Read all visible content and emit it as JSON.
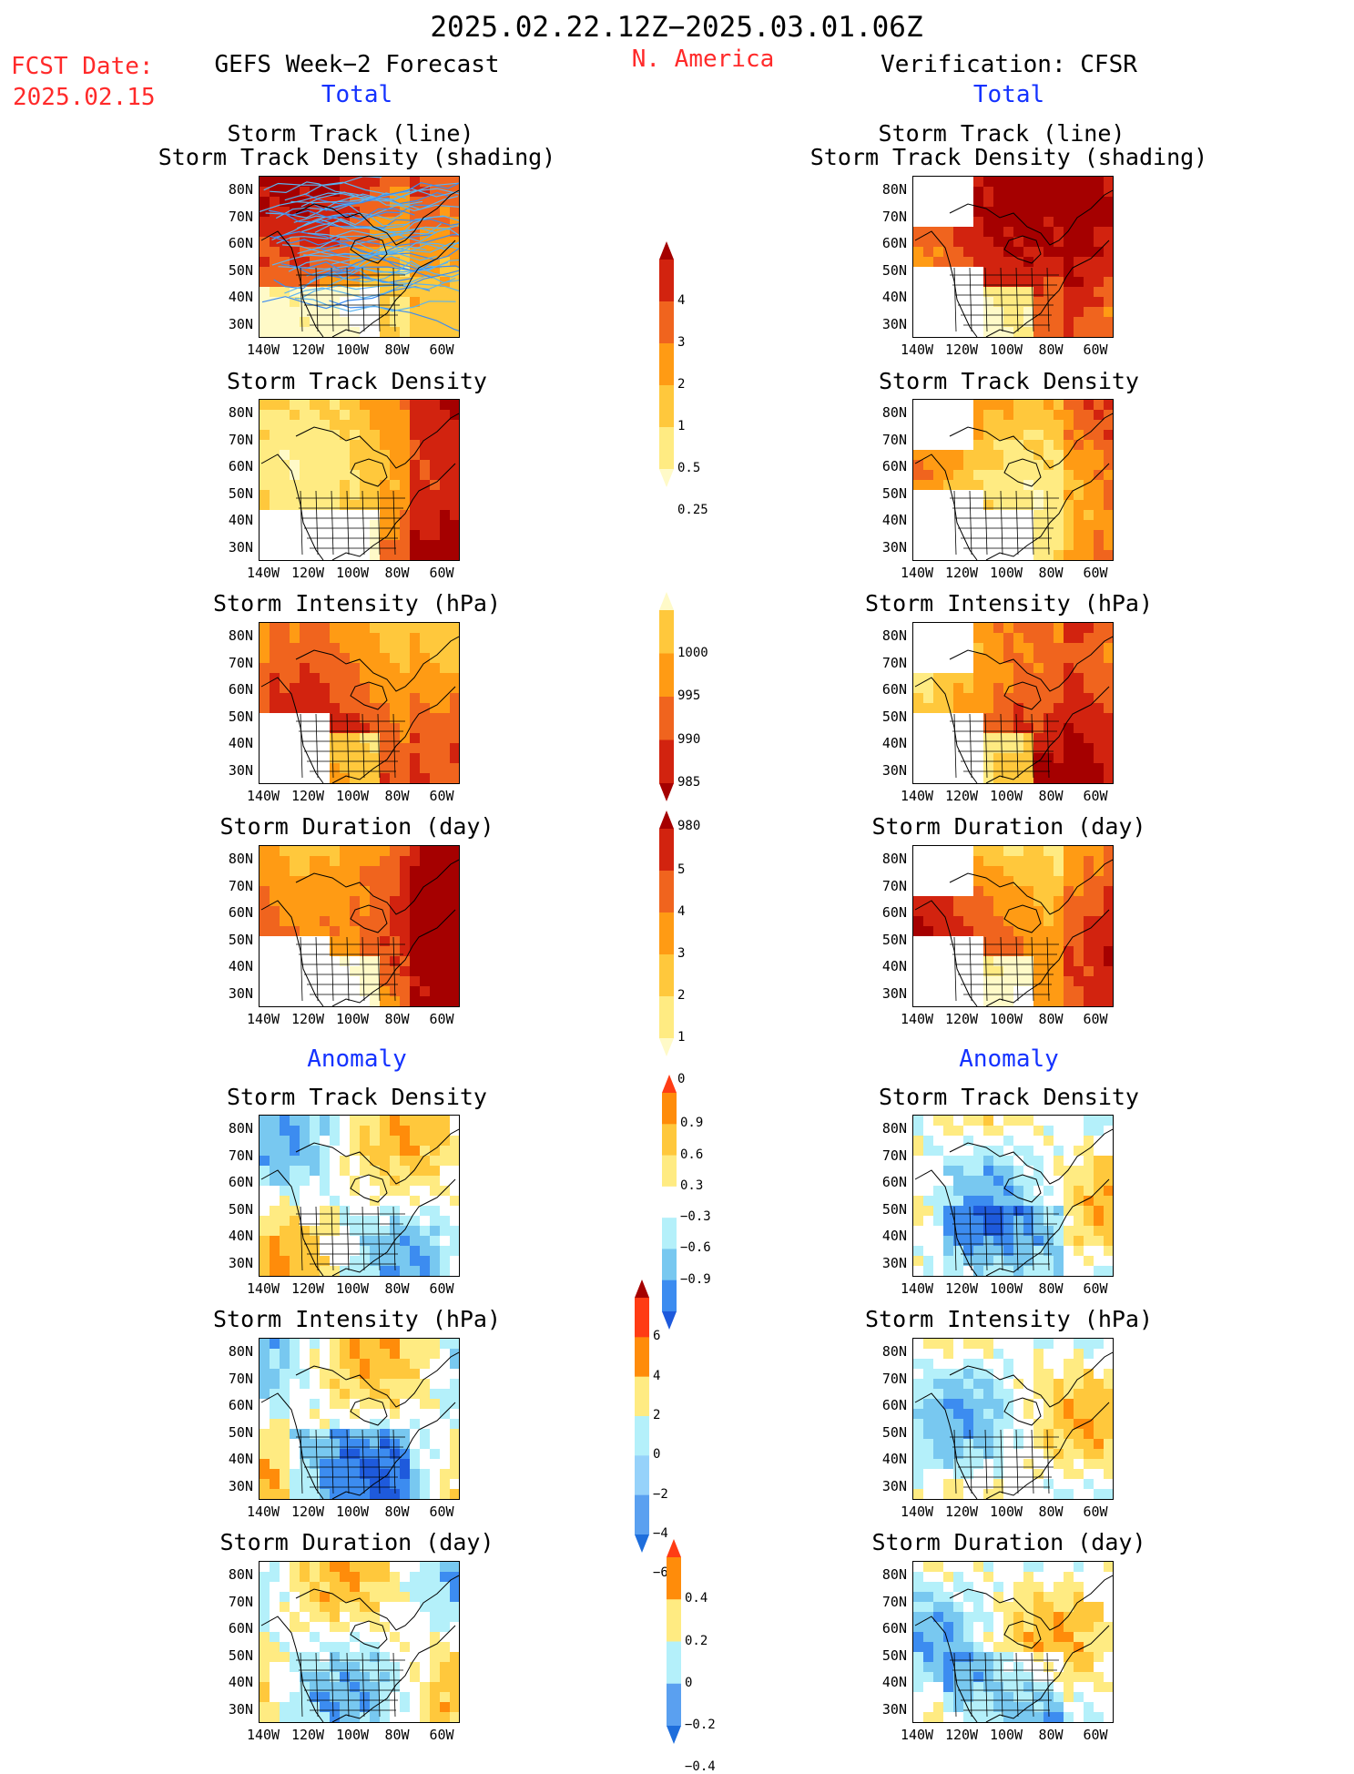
{
  "header": {
    "date_range": "2025.02.22.12Z−2025.03.01.06Z",
    "fcst_label": "FCST Date:",
    "fcst_date": "2025.02.15",
    "left_title": "GEFS Week−2 Forecast",
    "region": "N. America",
    "right_title": "Verification: CFSR"
  },
  "sections": {
    "total": "Total",
    "anomaly": "Anomaly"
  },
  "panels": {
    "track_line": "Storm Track (line)",
    "track_shading": "Storm Track Density (shading)",
    "density": "Storm Track Density",
    "intensity": "Storm Intensity (hPa)",
    "duration": "Storm Duration (day)"
  },
  "axes": {
    "lat_ticks": [
      "80N",
      "70N",
      "60N",
      "50N",
      "40N",
      "30N"
    ],
    "lon_ticks": [
      "140W",
      "120W",
      "100W",
      "80W",
      "60W"
    ]
  },
  "colorbars": {
    "density_total": {
      "labels": [
        "4",
        "3",
        "2",
        "1",
        "0.5",
        "0.25"
      ],
      "colors": [
        "#a50000",
        "#d2230f",
        "#f0641e",
        "#ff9b14",
        "#ffc83c",
        "#ffeb82",
        "#fffac8"
      ]
    },
    "intensity_total": {
      "labels": [
        "1000",
        "995",
        "990",
        "985",
        "980"
      ],
      "colors": [
        "#fffac8",
        "#ffc83c",
        "#ff9b14",
        "#f0641e",
        "#d2230f",
        "#a50000"
      ]
    },
    "duration_total": {
      "labels": [
        "5",
        "4",
        "3",
        "2",
        "1",
        "0"
      ],
      "colors": [
        "#a50000",
        "#d2230f",
        "#f0641e",
        "#ff9b14",
        "#ffc83c",
        "#ffeb82",
        "#fffac8"
      ]
    },
    "density_anom": {
      "labels": [
        "0.9",
        "0.6",
        "0.3",
        "−0.3",
        "−0.6",
        "−0.9"
      ],
      "colors": [
        "#ff3c14",
        "#ff8c0a",
        "#ffc83c",
        "#ffeb82",
        "#ffffff",
        "#b4f0fa",
        "#78c8f0",
        "#3c8cf0",
        "#1e5adc"
      ]
    },
    "intensity_anom": {
      "labels": [
        "6",
        "4",
        "2",
        "0",
        "−2",
        "−4",
        "−6"
      ],
      "colors": [
        "#a50000",
        "#ff3c14",
        "#ff8c0a",
        "#ffeb82",
        "#b4f0fa",
        "#96d2fa",
        "#5aa0f0",
        "#1e6edc"
      ]
    },
    "duration_anom": {
      "labels": [
        "0.4",
        "0.2",
        "0",
        "−0.2",
        "−0.4"
      ],
      "colors": [
        "#ff3c14",
        "#ff8c0a",
        "#ffeb82",
        "#b4f0fa",
        "#5aa0f0",
        "#1e6edc"
      ]
    }
  }
}
